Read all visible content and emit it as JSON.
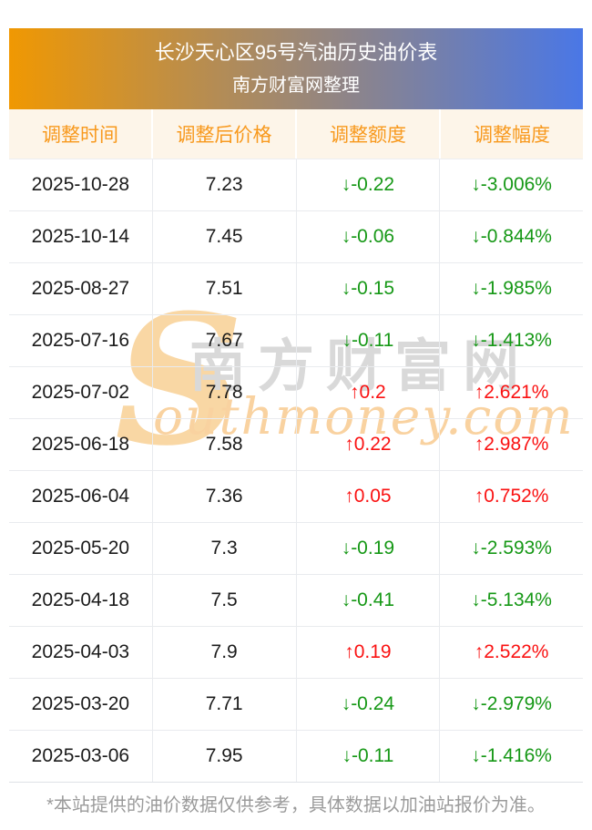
{
  "banner": {
    "title": "长沙天心区95号汽油历史油价表",
    "subtitle": "南方财富网整理"
  },
  "table": {
    "columns": [
      {
        "key": "date",
        "label": "调整时间"
      },
      {
        "key": "price",
        "label": "调整后价格"
      },
      {
        "key": "change",
        "label": "调整额度"
      },
      {
        "key": "pct",
        "label": "调整幅度"
      }
    ],
    "rows": [
      {
        "date": "2025-10-28",
        "price": "7.23",
        "change": "↓-0.22",
        "pct": "↓-3.006%",
        "direction": "down"
      },
      {
        "date": "2025-10-14",
        "price": "7.45",
        "change": "↓-0.06",
        "pct": "↓-0.844%",
        "direction": "down"
      },
      {
        "date": "2025-08-27",
        "price": "7.51",
        "change": "↓-0.15",
        "pct": "↓-1.985%",
        "direction": "down"
      },
      {
        "date": "2025-07-16",
        "price": "7.67",
        "change": "↓-0.11",
        "pct": "↓-1.413%",
        "direction": "down"
      },
      {
        "date": "2025-07-02",
        "price": "7.78",
        "change": "↑0.2",
        "pct": "↑2.621%",
        "direction": "up"
      },
      {
        "date": "2025-06-18",
        "price": "7.58",
        "change": "↑0.22",
        "pct": "↑2.987%",
        "direction": "up"
      },
      {
        "date": "2025-06-04",
        "price": "7.36",
        "change": "↑0.05",
        "pct": "↑0.752%",
        "direction": "up"
      },
      {
        "date": "2025-05-20",
        "price": "7.3",
        "change": "↓-0.19",
        "pct": "↓-2.593%",
        "direction": "down"
      },
      {
        "date": "2025-04-18",
        "price": "7.5",
        "change": "↓-0.41",
        "pct": "↓-5.134%",
        "direction": "down"
      },
      {
        "date": "2025-04-03",
        "price": "7.9",
        "change": "↑0.19",
        "pct": "↑2.522%",
        "direction": "up"
      },
      {
        "date": "2025-03-20",
        "price": "7.71",
        "change": "↓-0.24",
        "pct": "↓-2.979%",
        "direction": "down"
      },
      {
        "date": "2025-03-06",
        "price": "7.95",
        "change": "↓-0.11",
        "pct": "↓-1.416%",
        "direction": "down"
      }
    ]
  },
  "chart_data": {
    "type": "table",
    "title": "长沙天心区95号汽油历史油价表",
    "subtitle": "南方财富网整理",
    "columns": [
      "调整时间",
      "调整后价格",
      "调整额度",
      "调整幅度"
    ],
    "rows": [
      [
        "2025-10-28",
        7.23,
        -0.22,
        "-3.006%"
      ],
      [
        "2025-10-14",
        7.45,
        -0.06,
        "-0.844%"
      ],
      [
        "2025-08-27",
        7.51,
        -0.15,
        "-1.985%"
      ],
      [
        "2025-07-16",
        7.67,
        -0.11,
        "-1.413%"
      ],
      [
        "2025-07-02",
        7.78,
        0.2,
        "2.621%"
      ],
      [
        "2025-06-18",
        7.58,
        0.22,
        "2.987%"
      ],
      [
        "2025-06-04",
        7.36,
        0.05,
        "0.752%"
      ],
      [
        "2025-05-20",
        7.3,
        -0.19,
        "-2.593%"
      ],
      [
        "2025-04-18",
        7.5,
        -0.41,
        "-5.134%"
      ],
      [
        "2025-04-03",
        7.9,
        0.19,
        "2.522%"
      ],
      [
        "2025-03-20",
        7.71,
        -0.24,
        "-2.979%"
      ],
      [
        "2025-03-06",
        7.95,
        -0.11,
        "-1.416%"
      ]
    ]
  },
  "watermark": {
    "s": "S",
    "cn": "南方财富网",
    "en": "outhmoney.com"
  },
  "footer": {
    "note": "*本站提供的油价数据仅供参考，具体数据以加油站报价为准。"
  },
  "colors": {
    "banner_left": "#f09802",
    "banner_right": "#4a77e6",
    "header_orange": "#f8991d",
    "header_bg": "#fdf5e9",
    "up_red": "#fa1212",
    "down_green": "#169816"
  }
}
